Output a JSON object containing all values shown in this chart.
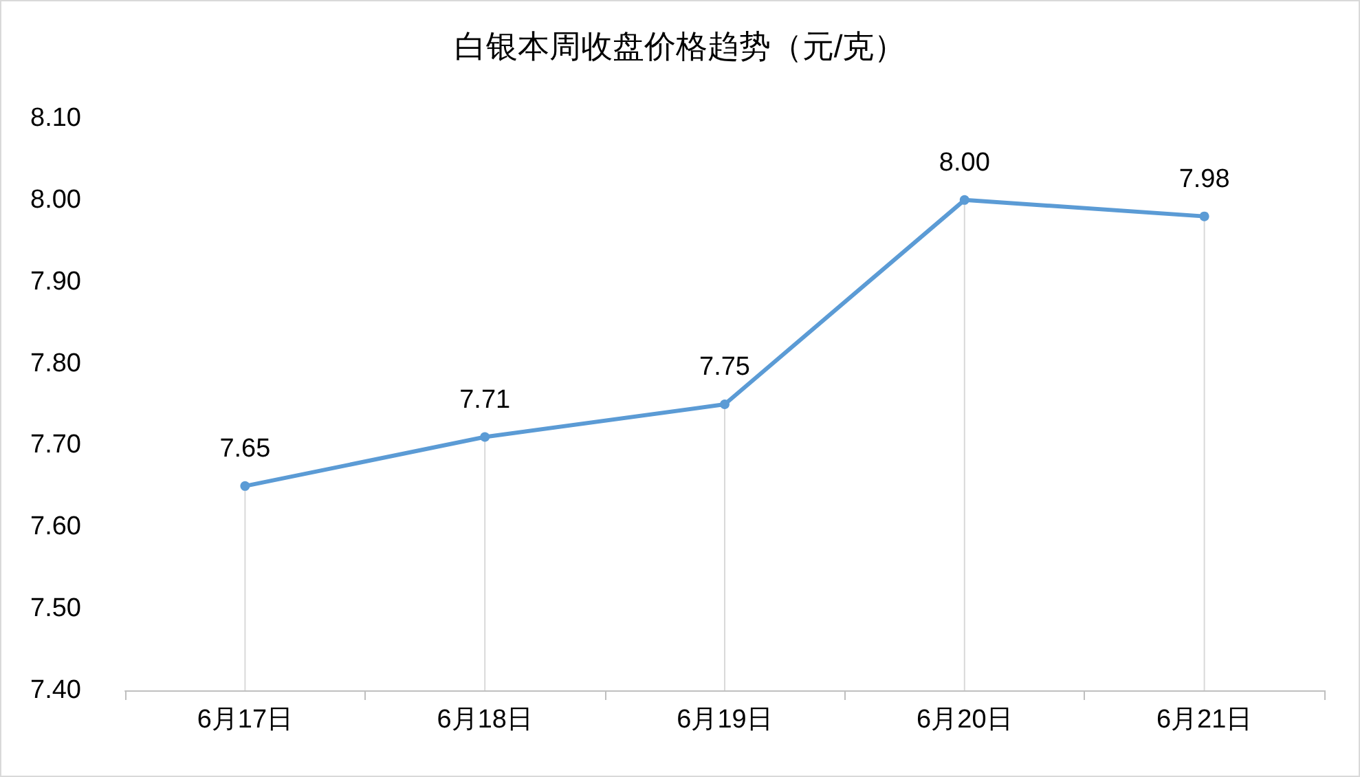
{
  "chart_data": {
    "type": "line",
    "title": "白银本周收盘价格趋势（元/克）",
    "categories": [
      "6月17日",
      "6月18日",
      "6月19日",
      "6月20日",
      "6月21日"
    ],
    "series": [
      {
        "type": "bar",
        "color": "#d9d9d9",
        "values": [
          7.65,
          7.71,
          7.75,
          8.0,
          7.98
        ]
      },
      {
        "color": "#5b9bd5",
        "values": [
          7.65,
          7.71,
          7.75,
          8.0,
          7.98
        ],
        "value_labels": [
          "7.65",
          "7.71",
          "7.75",
          "8.00",
          "7.98"
        ]
      }
    ],
    "ylim": [
      7.4,
      8.1
    ],
    "yticks": [
      {
        "value": 7.4,
        "label": "7.40"
      },
      {
        "value": 7.5,
        "label": "7.50"
      },
      {
        "value": 7.6,
        "label": "7.60"
      },
      {
        "value": 7.7,
        "label": "7.70"
      },
      {
        "value": 7.8,
        "label": "7.80"
      },
      {
        "value": 7.9,
        "label": "7.90"
      },
      {
        "value": 8.0,
        "label": "8.00"
      },
      {
        "value": 8.1,
        "label": "8.10"
      }
    ],
    "grid": false,
    "marker": "circle",
    "line_style": "solid"
  }
}
